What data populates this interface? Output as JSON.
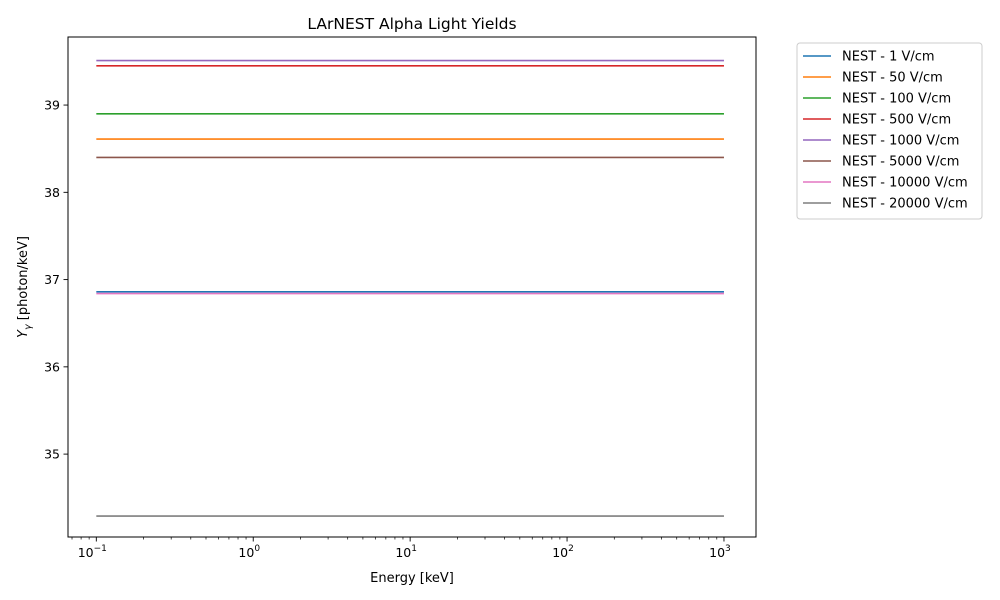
{
  "chart_data": {
    "type": "line",
    "title": "LArNEST Alpha Light Yields",
    "xlabel": "Energy [keV]",
    "ylabel": "Y_γ [photon/keV]",
    "xscale": "log",
    "xlim": [
      0.066,
      1600
    ],
    "ylim": [
      34.05,
      39.78
    ],
    "x": [
      0.1,
      1000
    ],
    "x_ticks": [
      {
        "value": 0.1,
        "base": "10",
        "exp": "−1"
      },
      {
        "value": 1,
        "base": "10",
        "exp": "0"
      },
      {
        "value": 10,
        "base": "10",
        "exp": "1"
      },
      {
        "value": 100,
        "base": "10",
        "exp": "2"
      },
      {
        "value": 1000,
        "base": "10",
        "exp": "3"
      }
    ],
    "y_ticks": [
      35,
      36,
      37,
      38,
      39
    ],
    "grid": false,
    "legend_position": "outside-top-right",
    "series": [
      {
        "name": "NEST - 1 V/cm",
        "color": "#1f77b4",
        "values": [
          36.86,
          36.86
        ]
      },
      {
        "name": "NEST - 50 V/cm",
        "color": "#ff7f0e",
        "values": [
          38.61,
          38.61
        ]
      },
      {
        "name": "NEST - 100 V/cm",
        "color": "#2ca02c",
        "values": [
          38.9,
          38.9
        ]
      },
      {
        "name": "NEST - 500 V/cm",
        "color": "#d62728",
        "values": [
          39.45,
          39.45
        ]
      },
      {
        "name": "NEST - 1000 V/cm",
        "color": "#9467bd",
        "values": [
          39.51,
          39.51
        ]
      },
      {
        "name": "NEST - 5000 V/cm",
        "color": "#8c564b",
        "values": [
          38.4,
          38.4
        ]
      },
      {
        "name": "NEST - 10000 V/cm",
        "color": "#e377c2",
        "values": [
          36.84,
          36.84
        ]
      },
      {
        "name": "NEST - 20000 V/cm",
        "color": "#7f7f7f",
        "values": [
          34.29,
          34.29
        ]
      }
    ]
  }
}
